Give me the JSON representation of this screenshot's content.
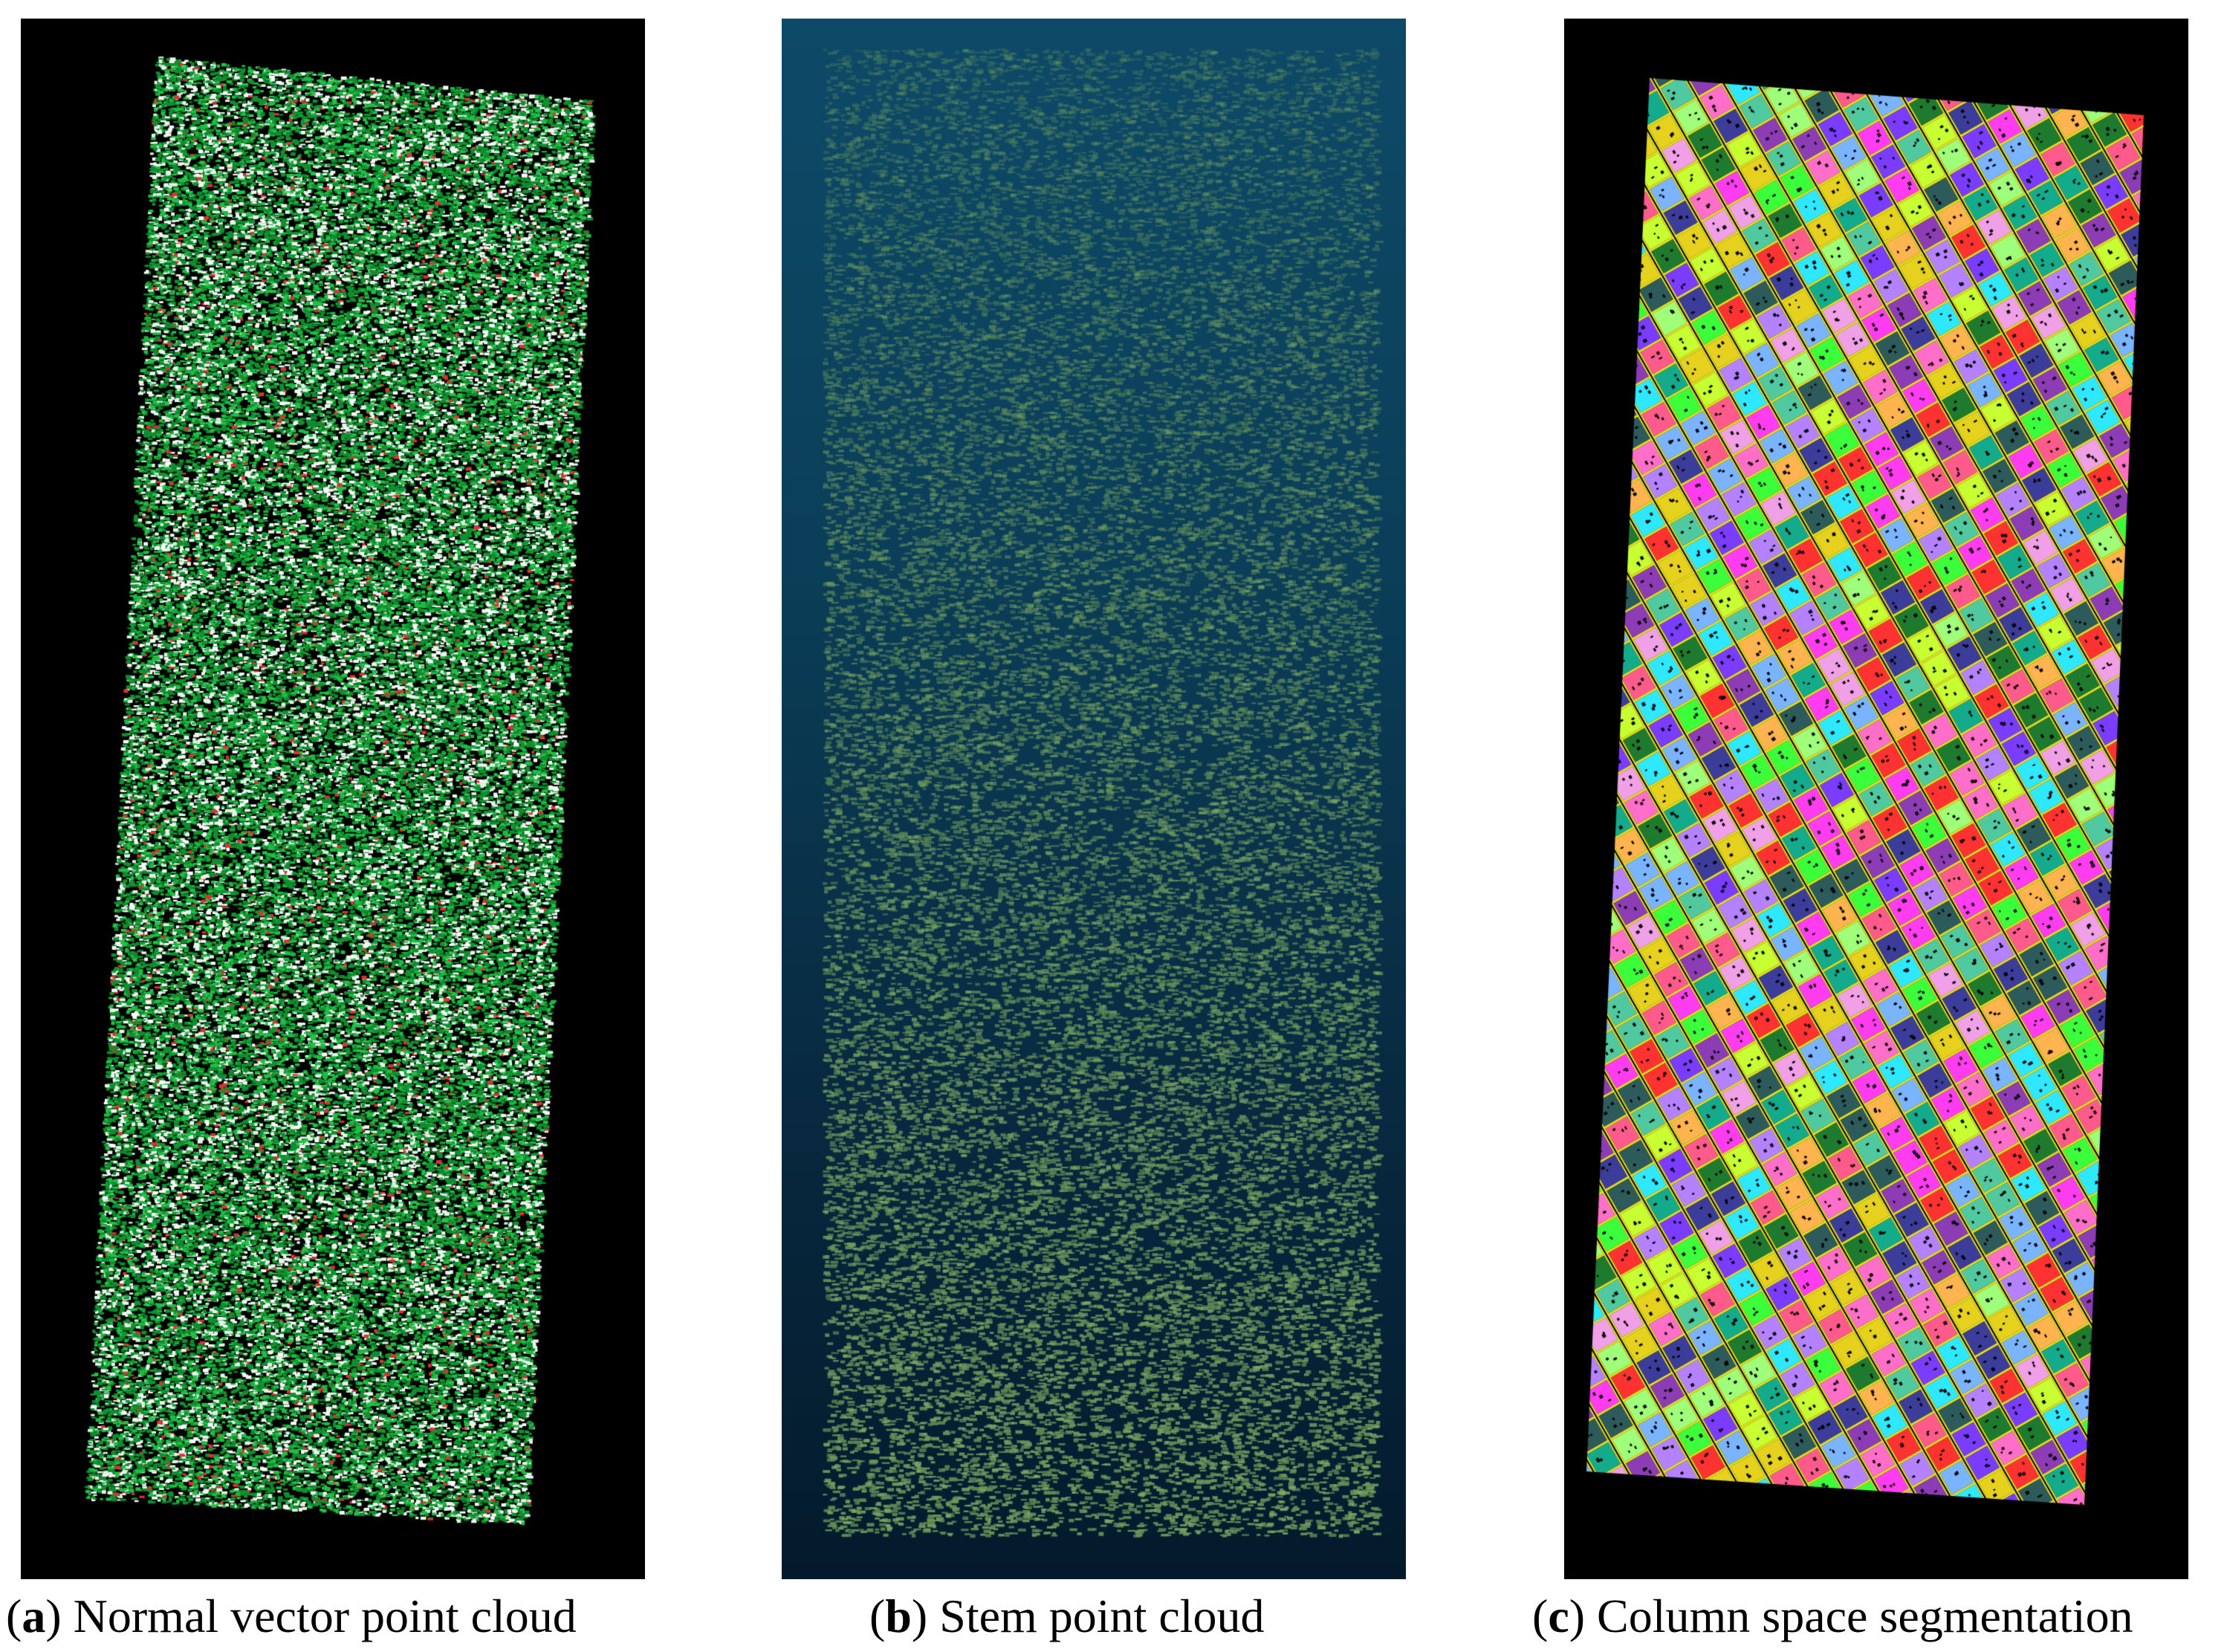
{
  "panels": [
    {
      "id": "a",
      "letter": "a",
      "caption": "Normal vector point cloud",
      "background": "#000000",
      "point_colors": [
        "#0f8f2e",
        "#1fbf45",
        "#e8f5e8",
        "#ffffff",
        "#e03030"
      ]
    },
    {
      "id": "b",
      "letter": "b",
      "caption": "Stem point cloud",
      "background_top": "#0d4a68",
      "background_bottom": "#041a2c",
      "point_colors": [
        "#6f9a5a",
        "#5d8a55",
        "#7fa865"
      ]
    },
    {
      "id": "c",
      "letter": "c",
      "caption": "Column space segmentation",
      "background": "#000000",
      "outline_color": "#e6e020",
      "cell_colors": [
        "#ff3cf0",
        "#2ee8ff",
        "#3cff3c",
        "#c8ff32",
        "#ff5a8c",
        "#7a3cff",
        "#ffb450",
        "#1e7a2e",
        "#b482ff",
        "#50c8a0",
        "#ff6ec8",
        "#7ab4ff",
        "#e6d21e",
        "#2d5a5a",
        "#3c3c9a",
        "#ff3232",
        "#a0ff7a",
        "#14aa8c",
        "#8c3cb4",
        "#f0a0e6"
      ]
    }
  ]
}
